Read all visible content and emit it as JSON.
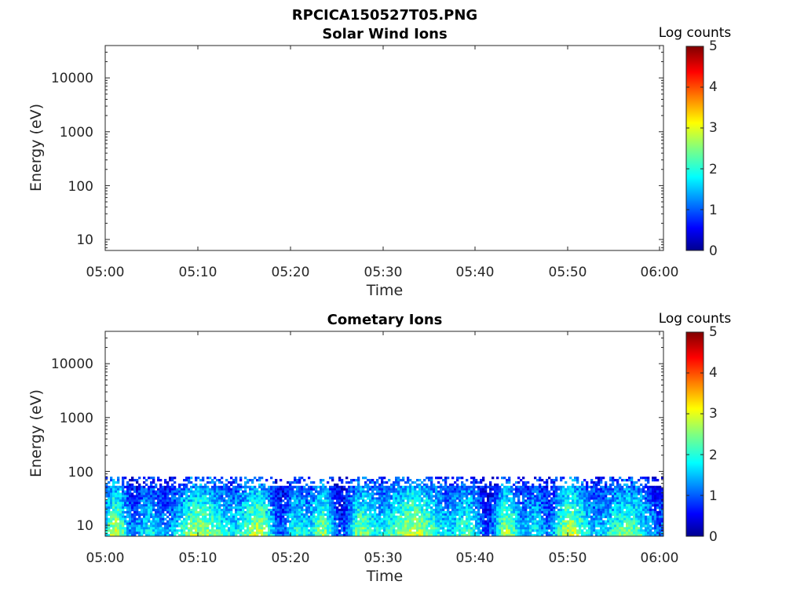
{
  "figure_title": "RPCICA150527T05.PNG",
  "chart_data": [
    {
      "type": "heatmap",
      "title": "Solar Wind Ions",
      "xlabel": "Time",
      "ylabel": "Energy (eV)",
      "x_ticks": [
        "05:00",
        "05:10",
        "05:20",
        "05:30",
        "05:40",
        "05:50",
        "06:00"
      ],
      "y_ticks": [
        "10",
        "100",
        "1000",
        "10000"
      ],
      "y_scale": "log",
      "ylim": [
        6,
        40000
      ],
      "colorbar": {
        "label": "Log counts",
        "ticks": [
          "0",
          "1",
          "2",
          "3",
          "4",
          "5"
        ],
        "range": [
          0,
          5
        ],
        "colormap": "jet"
      },
      "data_present": false
    },
    {
      "type": "heatmap",
      "title": "Cometary Ions",
      "xlabel": "Time",
      "ylabel": "Energy (eV)",
      "x_ticks": [
        "05:00",
        "05:10",
        "05:20",
        "05:30",
        "05:40",
        "05:50",
        "06:00"
      ],
      "y_ticks": [
        "10",
        "100",
        "1000",
        "10000"
      ],
      "y_scale": "log",
      "ylim": [
        6,
        40000
      ],
      "colorbar": {
        "label": "Log counts",
        "ticks": [
          "0",
          "1",
          "2",
          "3",
          "4",
          "5"
        ],
        "range": [
          0,
          5
        ],
        "colormap": "jet"
      },
      "data_present": true,
      "energy_range_eV": [
        6,
        80
      ],
      "peak_log_counts": 3.5
    }
  ]
}
